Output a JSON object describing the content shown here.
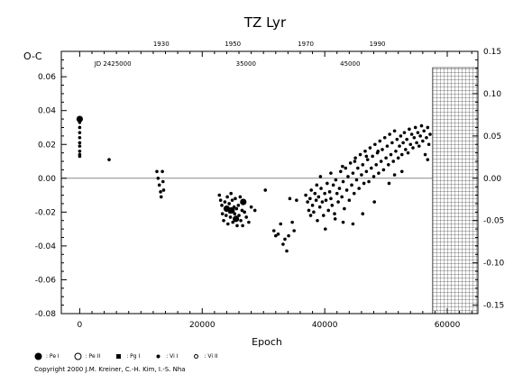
{
  "chart_data": {
    "type": "scatter",
    "title": "TZ  Lyr",
    "ylabel": "O-C",
    "xlabel": "Epoch",
    "xlim": [
      -3000,
      65000
    ],
    "ylim": [
      -0.08,
      0.075
    ],
    "y2lim": [
      -0.15,
      0.15
    ],
    "x_ticks": [
      {
        "value": 0,
        "label": "0"
      },
      {
        "value": 20000,
        "label": "20000"
      },
      {
        "value": 40000,
        "label": "40000"
      },
      {
        "value": 60000,
        "label": "60000"
      }
    ],
    "y_ticks": [
      {
        "value": 0.06,
        "label": "0.06"
      },
      {
        "value": 0.04,
        "label": "0.04"
      },
      {
        "value": 0.02,
        "label": "0.02"
      },
      {
        "value": 0.0,
        "label": "0.00"
      },
      {
        "value": -0.02,
        "label": "-0.02"
      },
      {
        "value": -0.04,
        "label": "-0.04"
      },
      {
        "value": -0.06,
        "label": "-0.06"
      },
      {
        "value": -0.08,
        "label": "-0.08"
      }
    ],
    "y2_ticks": [
      {
        "value": 0.15,
        "label": "0.15"
      },
      {
        "value": 0.1,
        "label": "0.10"
      },
      {
        "value": 0.05,
        "label": "0.05"
      },
      {
        "value": 0.0,
        "label": "0.00"
      },
      {
        "value": -0.05,
        "label": "-0.05"
      },
      {
        "value": -0.1,
        "label": "-0.10"
      },
      {
        "value": -0.15,
        "label": "-0.15"
      }
    ],
    "year_axis": [
      {
        "epoch": 13300,
        "label": "1930"
      },
      {
        "epoch": 25000,
        "label": "1950"
      },
      {
        "epoch": 36900,
        "label": "1970"
      },
      {
        "epoch": 48600,
        "label": "1990"
      }
    ],
    "jd_labels": [
      {
        "epoch": 2400,
        "label": "JD 2425000"
      },
      {
        "epoch": 25500,
        "label": "35000"
      },
      {
        "epoch": 42500,
        "label": "45000"
      }
    ],
    "future_region": [
      57600,
      65000
    ],
    "series": [
      {
        "name": ": Pe I",
        "marker": "large-filled",
        "points": [
          [
            0,
            0.035
          ],
          [
            24000,
            -0.018
          ],
          [
            24800,
            -0.019
          ],
          [
            26700,
            -0.014
          ],
          [
            25500,
            -0.024
          ]
        ]
      },
      {
        "name": ": Vi I",
        "marker": "small-filled",
        "points": [
          [
            0,
            0.033
          ],
          [
            0,
            0.03
          ],
          [
            0,
            0.027
          ],
          [
            0,
            0.024
          ],
          [
            0,
            0.021
          ],
          [
            0,
            0.019
          ],
          [
            0,
            0.016
          ],
          [
            0,
            0.014
          ],
          [
            0,
            0.013
          ],
          [
            4800,
            0.011
          ],
          [
            12600,
            0.004
          ],
          [
            12800,
            0.0
          ],
          [
            13000,
            -0.004
          ],
          [
            13200,
            -0.008
          ],
          [
            13300,
            -0.011
          ],
          [
            13500,
            0.004
          ],
          [
            13600,
            -0.002
          ],
          [
            13700,
            -0.007
          ],
          [
            22800,
            -0.01
          ],
          [
            23000,
            -0.013
          ],
          [
            23200,
            -0.016
          ],
          [
            23300,
            -0.021
          ],
          [
            23500,
            -0.025
          ],
          [
            23700,
            -0.014
          ],
          [
            23800,
            -0.018
          ],
          [
            23900,
            -0.022
          ],
          [
            24100,
            -0.011
          ],
          [
            24200,
            -0.027
          ],
          [
            24400,
            -0.015
          ],
          [
            24500,
            -0.02
          ],
          [
            24600,
            -0.023
          ],
          [
            24700,
            -0.009
          ],
          [
            24900,
            -0.013
          ],
          [
            25000,
            -0.026
          ],
          [
            25200,
            -0.017
          ],
          [
            25300,
            -0.021
          ],
          [
            25400,
            -0.012
          ],
          [
            25600,
            -0.018
          ],
          [
            25700,
            -0.028
          ],
          [
            25900,
            -0.016
          ],
          [
            26000,
            -0.022
          ],
          [
            26200,
            -0.011
          ],
          [
            26300,
            -0.025
          ],
          [
            26500,
            -0.019
          ],
          [
            26600,
            -0.028
          ],
          [
            26900,
            -0.02
          ],
          [
            27200,
            -0.023
          ],
          [
            27600,
            -0.026
          ],
          [
            28000,
            -0.017
          ],
          [
            28600,
            -0.019
          ],
          [
            30300,
            -0.007
          ],
          [
            31700,
            -0.031
          ],
          [
            32000,
            -0.034
          ],
          [
            32400,
            -0.033
          ],
          [
            32800,
            -0.027
          ],
          [
            33200,
            -0.039
          ],
          [
            33500,
            -0.036
          ],
          [
            33800,
            -0.043
          ],
          [
            34100,
            -0.034
          ],
          [
            34300,
            -0.012
          ],
          [
            34700,
            -0.026
          ],
          [
            35000,
            -0.031
          ],
          [
            35400,
            -0.013
          ],
          [
            36900,
            -0.01
          ],
          [
            37200,
            -0.014
          ],
          [
            37400,
            -0.019
          ],
          [
            37600,
            -0.012
          ],
          [
            37800,
            -0.007
          ],
          [
            38000,
            -0.016
          ],
          [
            38200,
            -0.02
          ],
          [
            38400,
            -0.009
          ],
          [
            38600,
            -0.013
          ],
          [
            38800,
            -0.025
          ],
          [
            39000,
            -0.011
          ],
          [
            39200,
            -0.017
          ],
          [
            39400,
            -0.006
          ],
          [
            39600,
            -0.014
          ],
          [
            39800,
            -0.022
          ],
          [
            40000,
            -0.009
          ],
          [
            40200,
            -0.013
          ],
          [
            40400,
            -0.003
          ],
          [
            40600,
            -0.019
          ],
          [
            40800,
            -0.008
          ],
          [
            41000,
            -0.012
          ],
          [
            41200,
            -0.016
          ],
          [
            41400,
            -0.004
          ],
          [
            41600,
            -0.021
          ],
          [
            41800,
            -0.001
          ],
          [
            42000,
            -0.009
          ],
          [
            42200,
            -0.014
          ],
          [
            42400,
            -0.006
          ],
          [
            42600,
            0.004
          ],
          [
            42800,
            -0.011
          ],
          [
            43000,
            -0.002
          ],
          [
            43200,
            -0.018
          ],
          [
            43400,
            0.006
          ],
          [
            43600,
            -0.007
          ],
          [
            43800,
            0.001
          ],
          [
            44000,
            -0.013
          ],
          [
            44200,
            0.009
          ],
          [
            44400,
            -0.004
          ],
          [
            44600,
            0.003
          ],
          [
            44800,
            -0.009
          ],
          [
            45000,
            0.012
          ],
          [
            45200,
            -0.001
          ],
          [
            45400,
            0.006
          ],
          [
            45600,
            -0.006
          ],
          [
            45800,
            0.014
          ],
          [
            46000,
            0.002
          ],
          [
            46200,
            0.008
          ],
          [
            46400,
            -0.003
          ],
          [
            46600,
            0.016
          ],
          [
            46800,
            0.004
          ],
          [
            47000,
            0.011
          ],
          [
            47200,
            -0.002
          ],
          [
            47400,
            0.018
          ],
          [
            47600,
            0.006
          ],
          [
            47800,
            0.013
          ],
          [
            48000,
            0.001
          ],
          [
            48200,
            0.02
          ],
          [
            48400,
            0.008
          ],
          [
            48600,
            0.015
          ],
          [
            48800,
            0.003
          ],
          [
            49000,
            0.022
          ],
          [
            49200,
            0.01
          ],
          [
            49400,
            0.017
          ],
          [
            49600,
            0.005
          ],
          [
            49800,
            0.024
          ],
          [
            50000,
            0.012
          ],
          [
            50200,
            0.019
          ],
          [
            50400,
            0.008
          ],
          [
            50600,
            0.026
          ],
          [
            50800,
            0.014
          ],
          [
            51000,
            0.021
          ],
          [
            51200,
            0.01
          ],
          [
            51400,
            0.028
          ],
          [
            51600,
            0.016
          ],
          [
            51800,
            0.023
          ],
          [
            52000,
            0.012
          ],
          [
            52200,
            0.019
          ],
          [
            52400,
            0.025
          ],
          [
            52600,
            0.014
          ],
          [
            52800,
            0.021
          ],
          [
            53000,
            0.027
          ],
          [
            53200,
            0.017
          ],
          [
            53400,
            0.023
          ],
          [
            53600,
            0.015
          ],
          [
            53800,
            0.029
          ],
          [
            54000,
            0.02
          ],
          [
            54200,
            0.026
          ],
          [
            54400,
            0.018
          ],
          [
            54600,
            0.024
          ],
          [
            54800,
            0.03
          ],
          [
            55000,
            0.021
          ],
          [
            55200,
            0.027
          ],
          [
            55400,
            0.019
          ],
          [
            55600,
            0.025
          ],
          [
            55800,
            0.031
          ],
          [
            56000,
            0.022
          ],
          [
            56200,
            0.028
          ],
          [
            56400,
            0.014
          ],
          [
            56600,
            0.024
          ],
          [
            56800,
            0.03
          ],
          [
            57000,
            0.02
          ],
          [
            57200,
            0.026
          ],
          [
            40100,
            -0.03
          ],
          [
            41700,
            -0.024
          ],
          [
            43000,
            -0.026
          ],
          [
            44600,
            -0.027
          ],
          [
            46200,
            -0.021
          ],
          [
            48100,
            -0.014
          ],
          [
            39300,
            0.001
          ],
          [
            41000,
            0.003
          ],
          [
            42900,
            0.007
          ],
          [
            44900,
            0.01
          ],
          [
            46800,
            0.013
          ],
          [
            48700,
            0.016
          ],
          [
            50500,
            -0.003
          ],
          [
            51400,
            0.002
          ],
          [
            52600,
            0.004
          ],
          [
            56800,
            0.011
          ],
          [
            38700,
            -0.004
          ],
          [
            37700,
            -0.022
          ]
        ]
      }
    ],
    "legend": [
      {
        "symbol": "large-filled",
        "label": ": Pe I"
      },
      {
        "symbol": "open",
        "label": ": Pe II"
      },
      {
        "symbol": "square",
        "label": ": Pg I"
      },
      {
        "symbol": "small-filled",
        "label": ": Vi I"
      },
      {
        "symbol": "small-open",
        "label": ": Vi II"
      }
    ]
  },
  "copyright": "Copyright 2000 J.M. Kreiner, C.-H. Kim, I.-S. Nha"
}
